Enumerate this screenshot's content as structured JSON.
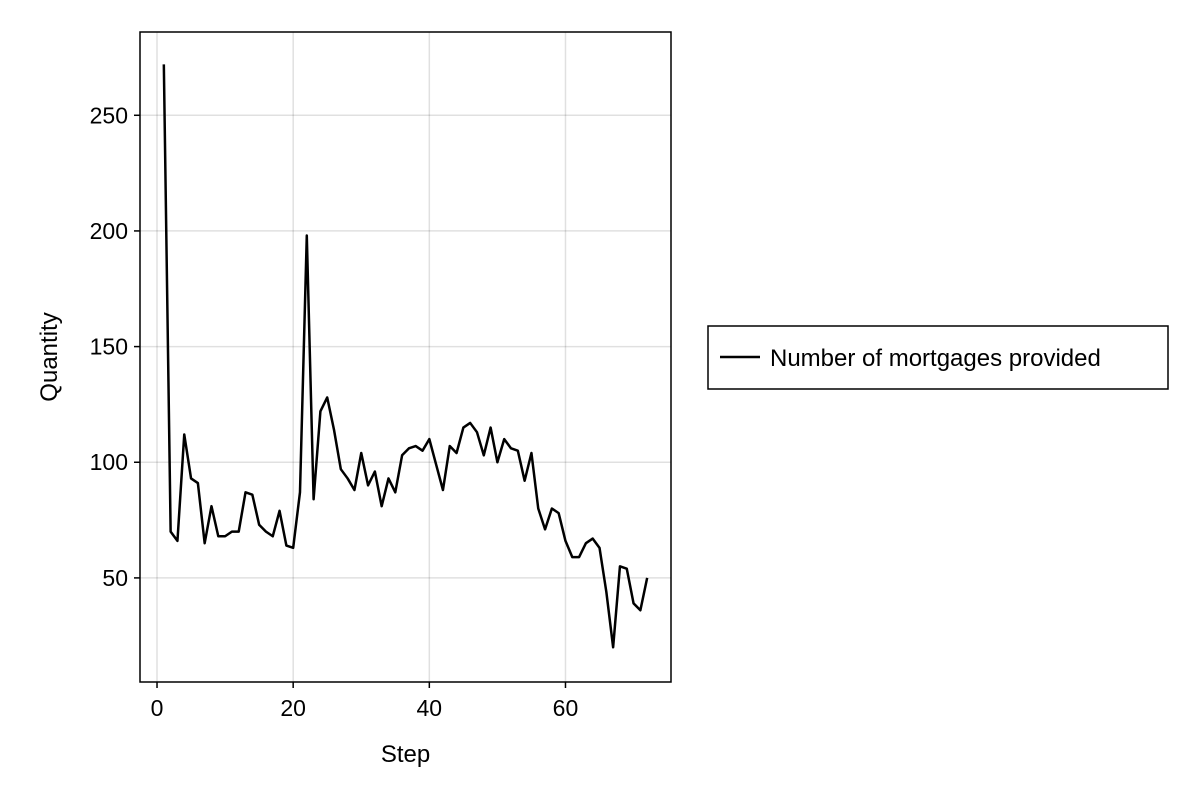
{
  "chart_data": {
    "type": "line",
    "xlabel": "Step",
    "ylabel": "Quantity",
    "xlim": [
      -2.5,
      75.5
    ],
    "ylim": [
      5,
      286
    ],
    "x_ticks": [
      0,
      20,
      40,
      60
    ],
    "y_ticks": [
      50,
      100,
      150,
      200,
      250
    ],
    "grid": true,
    "legend_position": "right",
    "series": [
      {
        "name": "Number of mortgages provided",
        "color": "#000000",
        "x": [
          1,
          2,
          3,
          4,
          5,
          6,
          7,
          8,
          9,
          10,
          11,
          12,
          13,
          14,
          15,
          16,
          17,
          18,
          19,
          20,
          21,
          22,
          23,
          24,
          25,
          26,
          27,
          28,
          29,
          30,
          31,
          32,
          33,
          34,
          35,
          36,
          37,
          38,
          39,
          40,
          41,
          42,
          43,
          44,
          45,
          46,
          47,
          48,
          49,
          50,
          51,
          52,
          53,
          54,
          55,
          56,
          57,
          58,
          59,
          60,
          61,
          62,
          63,
          64,
          65,
          66,
          67,
          68,
          69,
          70,
          71,
          72
        ],
        "values": [
          272,
          70,
          66,
          112,
          93,
          91,
          65,
          81,
          68,
          68,
          70,
          70,
          87,
          86,
          73,
          70,
          68,
          79,
          64,
          63,
          87,
          198,
          84,
          122,
          128,
          114,
          97,
          93,
          88,
          104,
          90,
          96,
          81,
          93,
          87,
          103,
          106,
          107,
          105,
          110,
          99,
          88,
          107,
          104,
          115,
          117,
          113,
          103,
          115,
          100,
          110,
          106,
          105,
          92,
          104,
          80,
          71,
          80,
          78,
          66,
          59,
          59,
          65,
          67,
          63,
          44,
          20,
          55,
          54,
          39,
          36,
          50
        ]
      }
    ]
  }
}
